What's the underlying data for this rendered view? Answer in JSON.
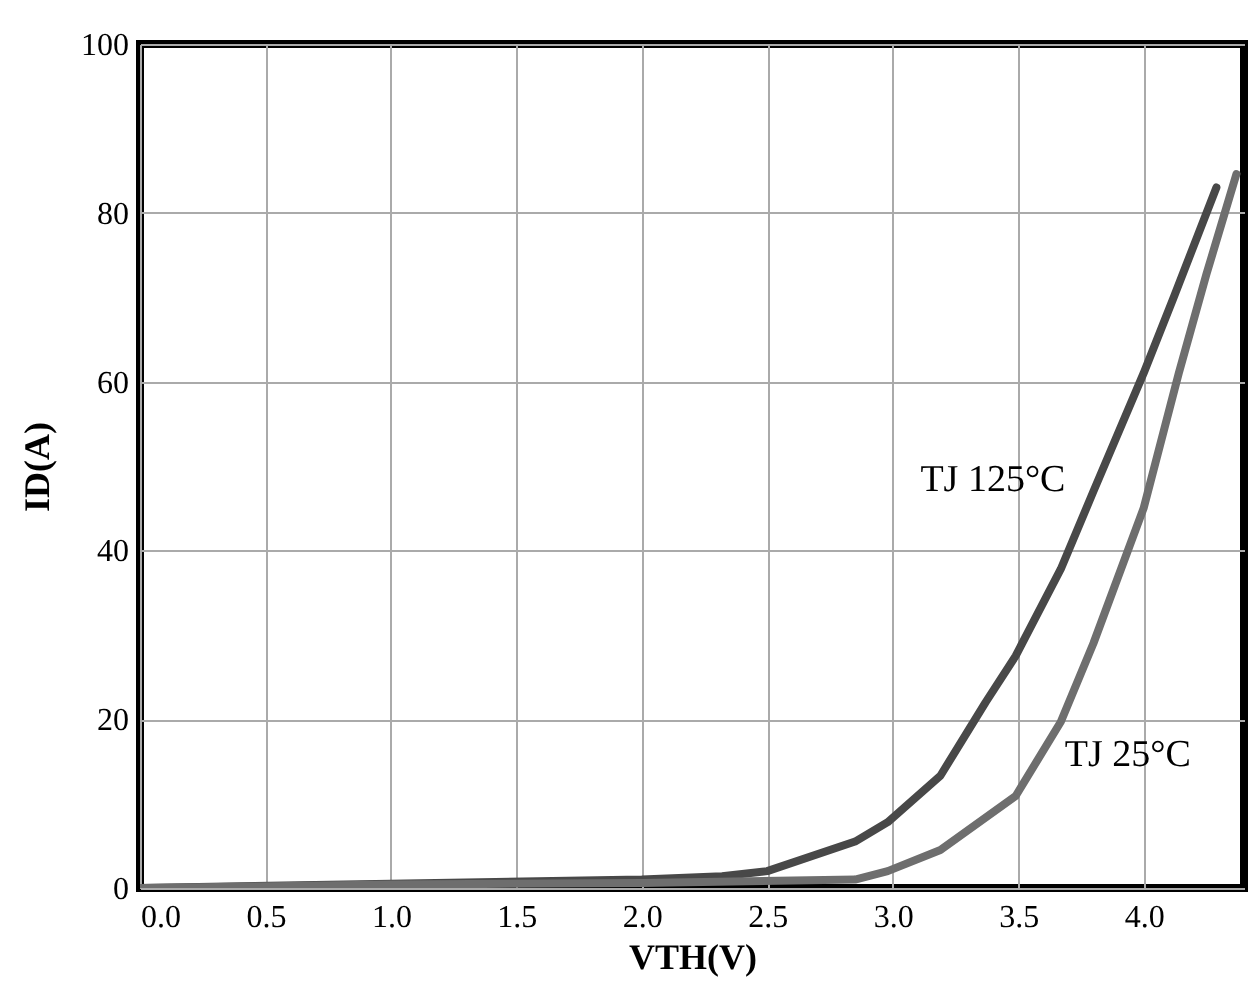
{
  "chart_data": {
    "type": "line",
    "xlabel": "VTH(V)",
    "ylabel": "ID(A)",
    "xlim": [
      0,
      4.4
    ],
    "ylim": [
      0,
      100
    ],
    "xticks": [
      {
        "value": 0,
        "label": "0.0"
      },
      {
        "value": 0.5,
        "label": "0.5"
      },
      {
        "value": 1,
        "label": "1.0"
      },
      {
        "value": 1.5,
        "label": "1.5"
      },
      {
        "value": 2,
        "label": "2.0"
      },
      {
        "value": 2.5,
        "label": "2.5"
      },
      {
        "value": 3,
        "label": "3.0"
      },
      {
        "value": 3.5,
        "label": "3.5"
      },
      {
        "value": 4,
        "label": "4.0"
      }
    ],
    "yticks": [
      0,
      20,
      40,
      60,
      80,
      100
    ],
    "grid": true,
    "marker": "none",
    "line_style": "solid",
    "series": [
      {
        "name": "TJ 125°C",
        "color": "#484848",
        "x": [
          0,
          1,
          2,
          2.32,
          2.5,
          2.85,
          2.98,
          3.19,
          3.37,
          3.49,
          3.67,
          3.8,
          4,
          4.12,
          4.29
        ],
        "values": [
          0,
          0.5,
          1,
          1.4,
          2,
          5.5,
          7.8,
          13.3,
          22,
          27.5,
          37.8,
          47,
          61,
          70,
          83
        ]
      },
      {
        "name": "TJ 25°C",
        "color": "#6e6e6e",
        "x": [
          0,
          1,
          2,
          2.85,
          2.98,
          3.19,
          3.49,
          3.67,
          3.8,
          4,
          4.14,
          4.25,
          4.37
        ],
        "values": [
          0,
          0.4,
          0.6,
          1,
          2,
          4.5,
          10.9,
          19.7,
          29,
          45,
          61,
          72.7,
          84.6
        ]
      }
    ]
  }
}
